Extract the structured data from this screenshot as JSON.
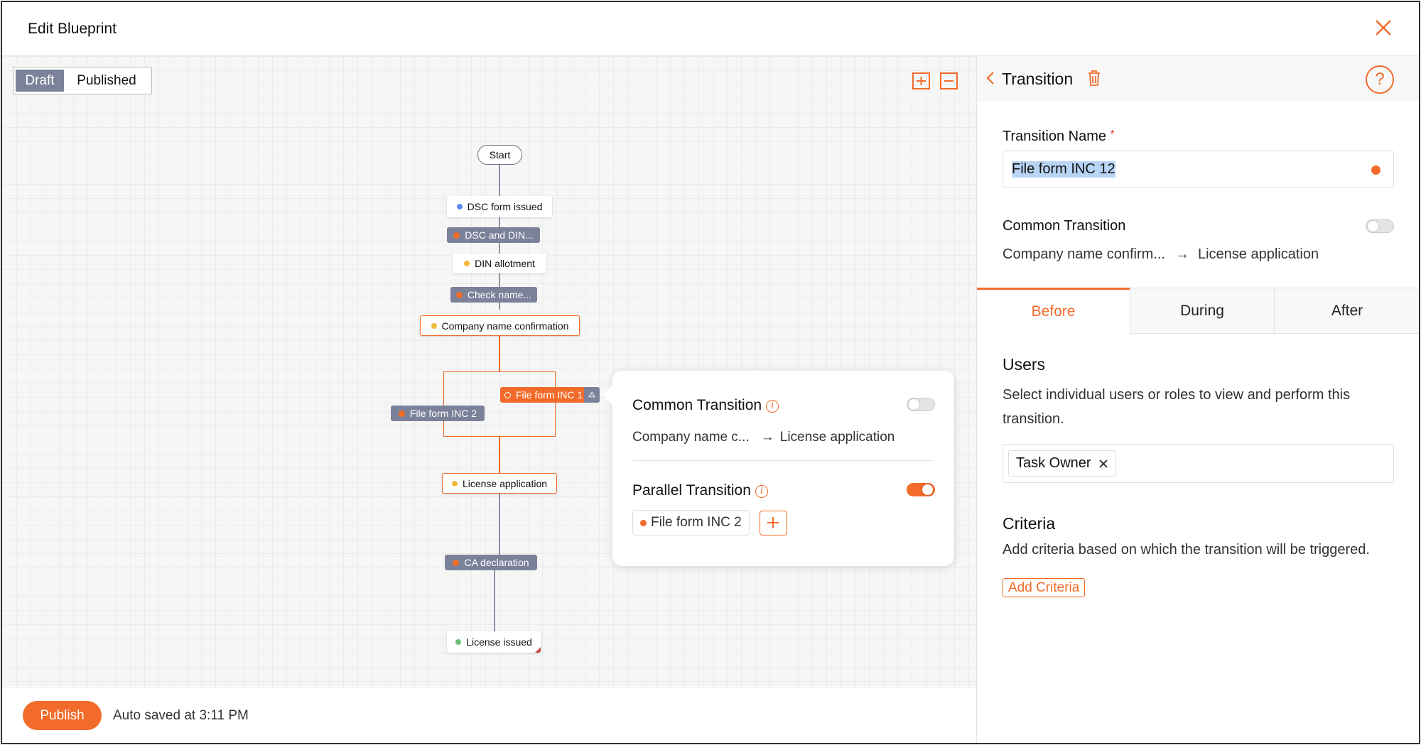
{
  "header": {
    "title": "Edit Blueprint",
    "close_icon": "close-icon"
  },
  "canvas": {
    "view_toggle": {
      "draft": "Draft",
      "published": "Published",
      "selected": "Draft"
    },
    "zoom_in_icon": "plus-square-icon",
    "zoom_out_icon": "minus-square-icon",
    "nodes": {
      "start": "Start",
      "dsc_form_issued": "DSC form issued",
      "dsc_and_din": "DSC and DIN...",
      "din_allotment": "DIN allotment",
      "check_name": "Check name...",
      "company_name_confirmation": "Company name confirmation",
      "file_form_inc_1": "File form INC 1",
      "file_form_inc_2": "File form INC 2",
      "license_application": "License application",
      "ca_declaration": "CA declaration",
      "license_issued": "License issued"
    },
    "colors": {
      "accent": "#f26b2a",
      "transition_node": "#7b8199",
      "blue_dot": "#5b8def",
      "yellow_dot": "#f2b93b",
      "green_dot": "#6cc070"
    }
  },
  "popover": {
    "common_transition": {
      "label": "Common Transition",
      "enabled": false,
      "from": "Company name c...",
      "to": "License application"
    },
    "parallel_transition": {
      "label": "Parallel Transition",
      "enabled": true,
      "chip": "File form INC 2"
    }
  },
  "footer": {
    "publish": "Publish",
    "autosave": "Auto saved at 3:11 PM"
  },
  "panel": {
    "title": "Transition",
    "name_label": "Transition Name",
    "required": "*",
    "name_value": "File form INC 12",
    "common_label": "Common Transition",
    "common_enabled": false,
    "from": "Company name confirm...",
    "to": "License application",
    "tabs": [
      {
        "label": "Before",
        "active": true
      },
      {
        "label": "During"
      },
      {
        "label": "After"
      }
    ],
    "users_heading": "Users",
    "users_desc": "Select individual users or roles to view and perform this transition.",
    "users_chip": "Task Owner",
    "criteria_heading": "Criteria",
    "criteria_desc": "Add criteria based on which the transition will be triggered.",
    "add_criteria": "Add Criteria"
  }
}
